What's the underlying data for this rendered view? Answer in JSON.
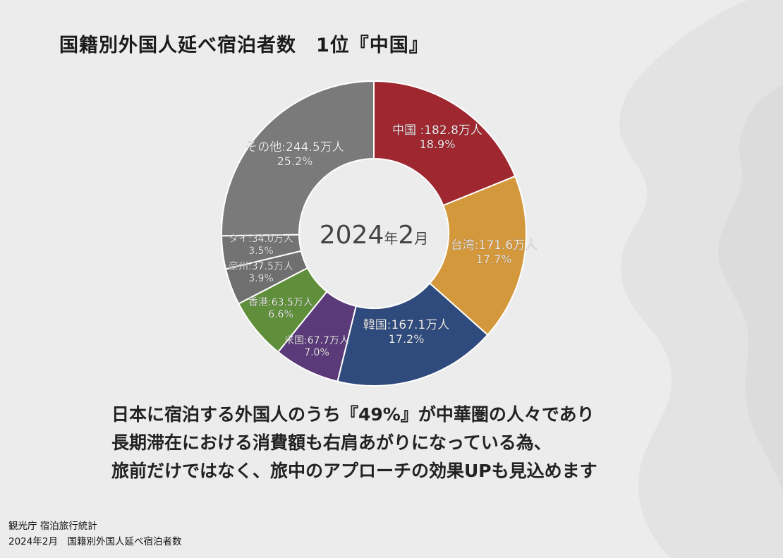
{
  "title": "国籍別外国人延べ宿泊者数　1位『中国』",
  "chart_data": {
    "type": "pie",
    "center_label": {
      "year": "2024",
      "year_unit": "年",
      "month": "2",
      "month_unit": "月"
    },
    "slices": [
      {
        "name": "中国",
        "value": 182.8,
        "unit": "万人",
        "percent": 18.9,
        "label_line1": "中国 :182.8万人",
        "label_line2": "18.9%",
        "color": "#9e2730"
      },
      {
        "name": "台湾",
        "value": 171.6,
        "unit": "万人",
        "percent": 17.7,
        "label_line1": "台湾:171.6万人",
        "label_line2": "17.7%",
        "color": "#d4983c"
      },
      {
        "name": "韓国",
        "value": 167.1,
        "unit": "万人",
        "percent": 17.2,
        "label_line1": "韓国:167.1万人",
        "label_line2": "17.2%",
        "color": "#2f4a7c"
      },
      {
        "name": "米国",
        "value": 67.7,
        "unit": "万人",
        "percent": 7.0,
        "label_line1": "米国:67.7万人",
        "label_line2": "7.0%",
        "color": "#5b3a7a"
      },
      {
        "name": "香港",
        "value": 63.5,
        "unit": "万人",
        "percent": 6.6,
        "label_line1": "香港:63.5万人",
        "label_line2": "6.6%",
        "color": "#5f8f3a"
      },
      {
        "name": "豪州",
        "value": 37.5,
        "unit": "万人",
        "percent": 3.9,
        "label_line1": "豪州:37.5万人",
        "label_line2": "3.9%",
        "color": "#6f6f6f"
      },
      {
        "name": "タイ",
        "value": 34.0,
        "unit": "万人",
        "percent": 3.5,
        "label_line1": "タイ:34.0万人",
        "label_line2": "3.5%",
        "color": "#737373"
      },
      {
        "name": "その他",
        "value": 244.5,
        "unit": "万人",
        "percent": 25.2,
        "label_line1": "その他:244.5万人",
        "label_line2": "25.2%",
        "color": "#7a7a7a"
      }
    ]
  },
  "body_lines": [
    "日本に宿泊する外国人のうち『49%』が中華圏の人々であり",
    "長期滞在における消費額も右肩あがりになっている為、",
    "旅前だけではなく、旅中のアプローチの効果UPも見込めます"
  ],
  "source_lines": [
    "観光庁 宿泊旅行統計",
    "2024年2月　国籍別外国人延べ宿泊者数"
  ]
}
